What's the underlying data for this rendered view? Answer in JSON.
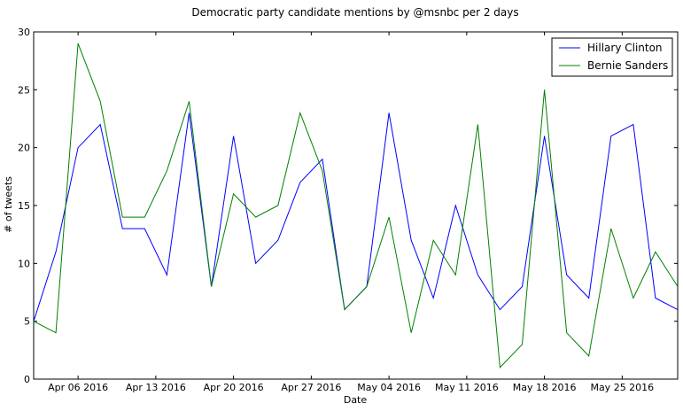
{
  "chart_data": {
    "type": "line",
    "title": "Democratic party candidate mentions by @msnbc per 2 days",
    "xlabel": "Date",
    "ylabel": "# of tweets",
    "ylim": [
      0,
      30
    ],
    "yticks": [
      0,
      5,
      10,
      15,
      20,
      25,
      30
    ],
    "x_ticks": [
      {
        "label": "Apr 06 2016",
        "date": "2016-04-06"
      },
      {
        "label": "Apr 13 2016",
        "date": "2016-04-13"
      },
      {
        "label": "Apr 20 2016",
        "date": "2016-04-20"
      },
      {
        "label": "Apr 27 2016",
        "date": "2016-04-27"
      },
      {
        "label": "May 04 2016",
        "date": "2016-05-04"
      },
      {
        "label": "May 11 2016",
        "date": "2016-05-11"
      },
      {
        "label": "May 18 2016",
        "date": "2016-05-18"
      },
      {
        "label": "May 25 2016",
        "date": "2016-05-25"
      }
    ],
    "x": [
      "2016-04-02",
      "2016-04-04",
      "2016-04-06",
      "2016-04-08",
      "2016-04-10",
      "2016-04-12",
      "2016-04-14",
      "2016-04-16",
      "2016-04-18",
      "2016-04-20",
      "2016-04-22",
      "2016-04-24",
      "2016-04-26",
      "2016-04-28",
      "2016-04-30",
      "2016-05-02",
      "2016-05-04",
      "2016-05-06",
      "2016-05-08",
      "2016-05-10",
      "2016-05-12",
      "2016-05-14",
      "2016-05-16",
      "2016-05-18",
      "2016-05-20",
      "2016-05-22",
      "2016-05-24",
      "2016-05-26",
      "2016-05-28",
      "2016-05-30"
    ],
    "legend_position": "top-right",
    "grid": false,
    "series": [
      {
        "name": "Hillary Clinton",
        "color": "#0000ff",
        "values": [
          5,
          11,
          20,
          22,
          13,
          13,
          9,
          23,
          8,
          21,
          10,
          12,
          17,
          19,
          6,
          8,
          23,
          12,
          7,
          15,
          9,
          6,
          8,
          21,
          9,
          7,
          21,
          22,
          7,
          6
        ]
      },
      {
        "name": "Bernie Sanders",
        "color": "#008000",
        "values": [
          5,
          4,
          29,
          24,
          14,
          14,
          18,
          24,
          8,
          16,
          14,
          15,
          23,
          18,
          6,
          8,
          14,
          4,
          12,
          9,
          22,
          1,
          3,
          25,
          4,
          2,
          13,
          7,
          11,
          8
        ]
      }
    ]
  }
}
